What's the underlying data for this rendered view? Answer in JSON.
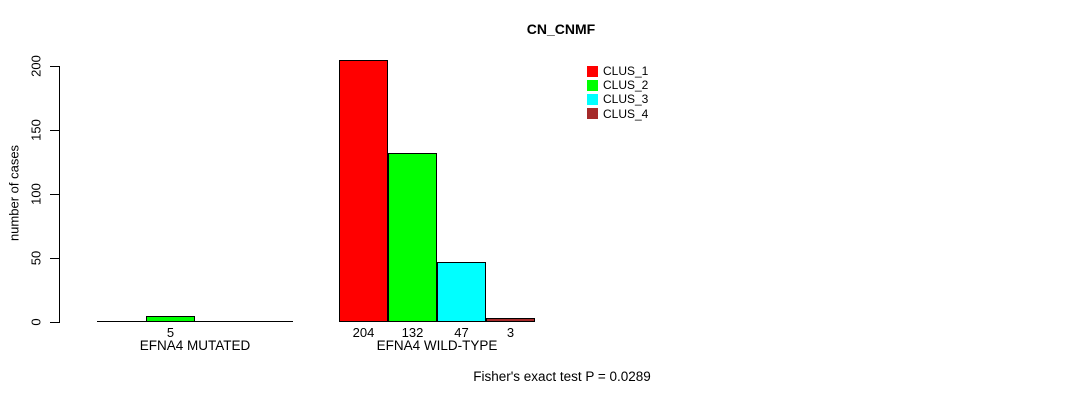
{
  "title": "CN_CNMF",
  "chart_data": {
    "type": "bar",
    "title": "CN_CNMF",
    "subtitle": "",
    "xlabel": "",
    "ylabel": "number of cases",
    "ylim": [
      0,
      200
    ],
    "yticks": [
      0,
      50,
      100,
      150,
      200
    ],
    "grid": false,
    "background": "#ffffff",
    "bar_outline_color": "#000000",
    "legend_position": "upper-right-of-plot",
    "annotation": "Fisher's exact test P = 0.0289",
    "categories": [
      "EFNA4 MUTATED",
      "EFNA4 WILD-TYPE"
    ],
    "series": [
      {
        "name": "CLUS_1",
        "color": "#ff0000",
        "values": [
          0,
          204
        ]
      },
      {
        "name": "CLUS_2",
        "color": "#00ff00",
        "values": [
          5,
          132
        ]
      },
      {
        "name": "CLUS_3",
        "color": "#00ffff",
        "values": [
          0,
          47
        ]
      },
      {
        "name": "CLUS_4",
        "color": "#a52a2a",
        "values": [
          0,
          3
        ]
      }
    ],
    "value_labels": [
      [
        "",
        "5",
        "",
        ""
      ],
      [
        "204",
        "132",
        "47",
        "3"
      ]
    ]
  }
}
